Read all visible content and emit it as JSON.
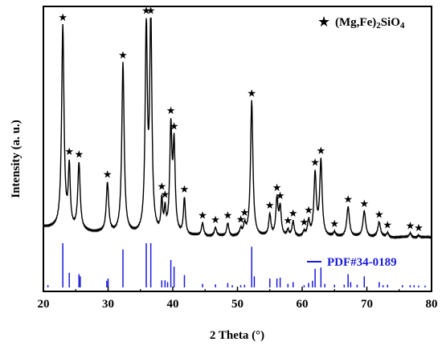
{
  "chart_data": {
    "type": "line",
    "title": "",
    "xlabel": "2 Theta (°)",
    "ylabel": "Intensity (a. u.)",
    "xlim": [
      20,
      80
    ],
    "x_ticks": [
      20,
      30,
      40,
      50,
      60,
      70,
      80
    ],
    "x_tick_labels": [
      "20",
      "30",
      "40",
      "50",
      "60",
      "70",
      "80"
    ],
    "y_ticks_shown": false,
    "grid": false,
    "legend": [
      {
        "name": "★  (Mg,Fe)2SiO4",
        "marker": "star",
        "position": "top-right"
      },
      {
        "name": "PDF#34-0189",
        "marker": "blue-line",
        "position": "right"
      }
    ],
    "series": [
      {
        "name": "(Mg,Fe)2SiO4",
        "color": "#000000",
        "baseline": 0.05,
        "peaks": [
          {
            "x": 23.0,
            "y": 0.94,
            "w": 0.22
          },
          {
            "x": 24.0,
            "y": 0.28,
            "w": 0.18
          },
          {
            "x": 25.5,
            "y": 0.31,
            "w": 0.22
          },
          {
            "x": 29.9,
            "y": 0.23,
            "w": 0.22
          },
          {
            "x": 32.3,
            "y": 0.79,
            "w": 0.22
          },
          {
            "x": 35.9,
            "y": 0.95,
            "w": 0.2
          },
          {
            "x": 36.6,
            "y": 1.0,
            "w": 0.2
          },
          {
            "x": 38.3,
            "y": 0.15,
            "w": 0.15
          },
          {
            "x": 38.8,
            "y": 0.1,
            "w": 0.15
          },
          {
            "x": 39.7,
            "y": 0.48,
            "w": 0.2
          },
          {
            "x": 40.2,
            "y": 0.4,
            "w": 0.2
          },
          {
            "x": 41.8,
            "y": 0.17,
            "w": 0.18
          },
          {
            "x": 44.6,
            "y": 0.06,
            "w": 0.2
          },
          {
            "x": 46.6,
            "y": 0.04,
            "w": 0.2
          },
          {
            "x": 48.5,
            "y": 0.06,
            "w": 0.2
          },
          {
            "x": 50.5,
            "y": 0.03,
            "w": 0.2
          },
          {
            "x": 51.1,
            "y": 0.05,
            "w": 0.2
          },
          {
            "x": 52.2,
            "y": 0.63,
            "w": 0.22
          },
          {
            "x": 55.0,
            "y": 0.1,
            "w": 0.2
          },
          {
            "x": 56.1,
            "y": 0.17,
            "w": 0.2
          },
          {
            "x": 56.6,
            "y": 0.13,
            "w": 0.2
          },
          {
            "x": 57.8,
            "y": 0.03,
            "w": 0.15
          },
          {
            "x": 58.6,
            "y": 0.07,
            "w": 0.2
          },
          {
            "x": 60.3,
            "y": 0.02,
            "w": 0.2
          },
          {
            "x": 61.0,
            "y": 0.07,
            "w": 0.2
          },
          {
            "x": 62.0,
            "y": 0.29,
            "w": 0.22
          },
          {
            "x": 62.9,
            "y": 0.35,
            "w": 0.22
          },
          {
            "x": 65.0,
            "y": 0.02,
            "w": 0.2
          },
          {
            "x": 67.1,
            "y": 0.14,
            "w": 0.25
          },
          {
            "x": 69.6,
            "y": 0.12,
            "w": 0.25
          },
          {
            "x": 71.9,
            "y": 0.07,
            "w": 0.25
          },
          {
            "x": 73.2,
            "y": 0.02,
            "w": 0.2
          },
          {
            "x": 76.7,
            "y": 0.02,
            "w": 0.2
          },
          {
            "x": 78.0,
            "y": 0.01,
            "w": 0.2
          }
        ]
      },
      {
        "name": "PDF#34-0189",
        "type": "stick",
        "color": "#1a1adb",
        "sticks": [
          {
            "x": 20.7,
            "y": 0.05
          },
          {
            "x": 23.0,
            "y": 1.0
          },
          {
            "x": 24.0,
            "y": 0.33
          },
          {
            "x": 25.5,
            "y": 0.3
          },
          {
            "x": 25.7,
            "y": 0.25
          },
          {
            "x": 29.8,
            "y": 0.15
          },
          {
            "x": 30.0,
            "y": 0.2
          },
          {
            "x": 32.3,
            "y": 0.86
          },
          {
            "x": 35.9,
            "y": 1.0
          },
          {
            "x": 36.6,
            "y": 1.0
          },
          {
            "x": 38.3,
            "y": 0.16
          },
          {
            "x": 38.8,
            "y": 0.16
          },
          {
            "x": 39.2,
            "y": 0.12
          },
          {
            "x": 39.7,
            "y": 0.62
          },
          {
            "x": 40.2,
            "y": 0.47
          },
          {
            "x": 41.8,
            "y": 0.28
          },
          {
            "x": 44.6,
            "y": 0.08
          },
          {
            "x": 46.6,
            "y": 0.07
          },
          {
            "x": 48.5,
            "y": 0.1
          },
          {
            "x": 49.2,
            "y": 0.05
          },
          {
            "x": 50.5,
            "y": 0.05
          },
          {
            "x": 51.1,
            "y": 0.06
          },
          {
            "x": 52.2,
            "y": 0.92
          },
          {
            "x": 52.6,
            "y": 0.25
          },
          {
            "x": 55.0,
            "y": 0.2
          },
          {
            "x": 56.1,
            "y": 0.2
          },
          {
            "x": 56.6,
            "y": 0.22
          },
          {
            "x": 57.8,
            "y": 0.08
          },
          {
            "x": 58.6,
            "y": 0.12
          },
          {
            "x": 60.3,
            "y": 0.05
          },
          {
            "x": 61.0,
            "y": 0.1
          },
          {
            "x": 61.6,
            "y": 0.15
          },
          {
            "x": 62.0,
            "y": 0.42
          },
          {
            "x": 62.9,
            "y": 0.45
          },
          {
            "x": 63.5,
            "y": 0.08
          },
          {
            "x": 65.0,
            "y": 0.06
          },
          {
            "x": 66.5,
            "y": 0.06
          },
          {
            "x": 67.1,
            "y": 0.3
          },
          {
            "x": 67.5,
            "y": 0.12
          },
          {
            "x": 68.5,
            "y": 0.06
          },
          {
            "x": 69.6,
            "y": 0.25
          },
          {
            "x": 71.9,
            "y": 0.12
          },
          {
            "x": 72.5,
            "y": 0.05
          },
          {
            "x": 73.2,
            "y": 0.06
          },
          {
            "x": 75.5,
            "y": 0.05
          },
          {
            "x": 76.7,
            "y": 0.05
          },
          {
            "x": 77.3,
            "y": 0.05
          },
          {
            "x": 78.0,
            "y": 0.04
          },
          {
            "x": 79.0,
            "y": 0.04
          }
        ]
      }
    ],
    "star_markers_x": [
      23.0,
      24.0,
      25.5,
      29.9,
      32.3,
      35.9,
      36.6,
      38.3,
      38.8,
      39.7,
      40.2,
      41.8,
      44.6,
      46.6,
      48.5,
      50.5,
      51.1,
      52.2,
      55.0,
      56.1,
      56.6,
      57.8,
      58.6,
      60.3,
      61.0,
      62.0,
      62.9,
      65.0,
      67.1,
      69.6,
      71.9,
      73.2,
      76.7,
      78.0
    ]
  }
}
